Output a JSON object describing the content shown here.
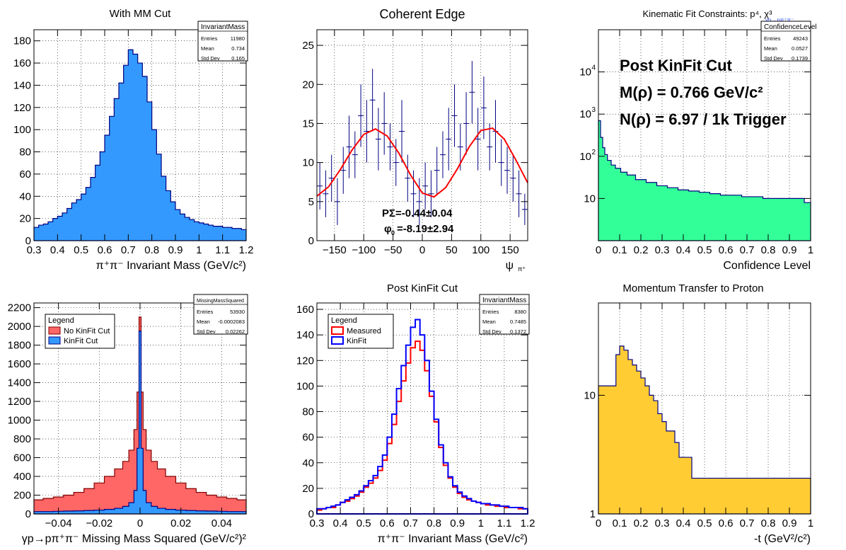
{
  "chart_data": [
    {
      "type": "histogram",
      "title": "With MM Cut",
      "xlabel": "π⁺π⁻ Invariant Mass (GeV/c²)",
      "xlim": [
        0.3,
        1.2
      ],
      "ylim": [
        0,
        190
      ],
      "xticks": [
        "0.3",
        "0.4",
        "0.5",
        "0.6",
        "0.7",
        "0.8",
        "0.9",
        "1",
        "1.1",
        "1.2"
      ],
      "yticks": [
        "0",
        "20",
        "40",
        "60",
        "80",
        "100",
        "120",
        "140",
        "160",
        "180"
      ],
      "ytick_values": [
        0,
        20,
        40,
        60,
        80,
        100,
        120,
        140,
        160,
        180
      ],
      "xtick_values": [
        0.3,
        0.4,
        0.5,
        0.6,
        0.7,
        0.8,
        0.9,
        1.0,
        1.1,
        1.2
      ],
      "series": [
        {
          "fill": "#3399ff",
          "line": "#000080",
          "x": [
            0.31,
            0.33,
            0.35,
            0.37,
            0.39,
            0.41,
            0.43,
            0.45,
            0.47,
            0.49,
            0.51,
            0.53,
            0.55,
            0.57,
            0.59,
            0.61,
            0.63,
            0.65,
            0.67,
            0.69,
            0.71,
            0.73,
            0.75,
            0.77,
            0.79,
            0.81,
            0.83,
            0.85,
            0.87,
            0.89,
            0.91,
            0.93,
            0.95,
            0.97,
            0.99,
            1.01,
            1.03,
            1.05,
            1.07,
            1.09,
            1.11,
            1.13,
            1.15,
            1.17,
            1.19
          ],
          "values": [
            12,
            14,
            15,
            17,
            20,
            22,
            25,
            29,
            34,
            37,
            42,
            48,
            57,
            68,
            80,
            95,
            112,
            128,
            142,
            158,
            172,
            168,
            160,
            148,
            125,
            100,
            78,
            58,
            45,
            35,
            28,
            24,
            21,
            19,
            17,
            16,
            15,
            14,
            13,
            13,
            12,
            12,
            11,
            11,
            10
          ]
        }
      ],
      "stats": {
        "name": "InvariantMass",
        "rows": [
          [
            "Entries",
            "11980"
          ],
          [
            "Mean",
            "0.734"
          ],
          [
            "Std Dev",
            "0.165"
          ]
        ]
      }
    },
    {
      "type": "scatter",
      "title": "Coherent Edge",
      "xlabel": "ψ",
      "xlabel_sub": "π⁺",
      "xlim": [
        -180,
        180
      ],
      "ylim": [
        0,
        27
      ],
      "xticks": [
        "−150",
        "−100",
        "−50",
        "0",
        "50",
        "100",
        "150"
      ],
      "xtick_values": [
        -150,
        -100,
        -50,
        0,
        50,
        100,
        150
      ],
      "yticks": [
        "0",
        "5",
        "10",
        "15",
        "20",
        "25"
      ],
      "ytick_values": [
        0,
        5,
        10,
        15,
        20,
        25
      ],
      "points": {
        "color": "#000080",
        "x": [
          -175,
          -165,
          -155,
          -145,
          -135,
          -125,
          -115,
          -105,
          -95,
          -85,
          -75,
          -65,
          -55,
          -45,
          -35,
          -25,
          -15,
          -5,
          5,
          15,
          25,
          35,
          45,
          55,
          65,
          75,
          85,
          95,
          105,
          115,
          125,
          135,
          145,
          155,
          165,
          175
        ],
        "y": [
          7,
          6,
          8,
          5,
          9,
          12,
          11,
          16,
          14,
          18,
          13,
          15,
          12,
          10,
          14,
          8,
          6,
          5,
          7,
          6,
          9,
          11,
          13,
          16,
          12,
          15,
          19,
          13,
          17,
          12,
          14,
          10,
          9,
          8,
          6,
          4
        ],
        "err": [
          3,
          3,
          3,
          3,
          3,
          4,
          3,
          4,
          4,
          4,
          4,
          4,
          3,
          3,
          4,
          3,
          3,
          3,
          3,
          3,
          3,
          3,
          4,
          4,
          3,
          4,
          4,
          4,
          4,
          3,
          4,
          3,
          3,
          3,
          3,
          2
        ]
      },
      "fit": {
        "color": "#ff0000",
        "x": [
          -180,
          -160,
          -140,
          -120,
          -100,
          -80,
          -60,
          -40,
          -20,
          0,
          20,
          40,
          60,
          80,
          100,
          120,
          140,
          160,
          180
        ],
        "y": [
          5.7,
          6.9,
          9.1,
          11.6,
          13.6,
          14.3,
          13.4,
          11.2,
          8.4,
          6.1,
          5.6,
          6.8,
          9.2,
          12.0,
          14.1,
          14.4,
          13.0,
          10.3,
          7.4
        ]
      },
      "annotations": [
        "PΣ=-0.44±0.04",
        "φ",
        "0",
        "=-8.19±2.94"
      ]
    },
    {
      "type": "histogram",
      "title": "Kinematic Fit Constraints: p⁴, χ³",
      "title_sub": "γp→pπ⁺π⁻",
      "xlabel": "Confidence Level",
      "xlim": [
        0,
        1
      ],
      "log_y": true,
      "ylim": [
        1,
        100000
      ],
      "xticks": [
        "0",
        "0.1",
        "0.2",
        "0.3",
        "0.4",
        "0.5",
        "0.6",
        "0.7",
        "0.8",
        "0.9",
        "1"
      ],
      "xtick_values": [
        0,
        0.1,
        0.2,
        0.3,
        0.4,
        0.5,
        0.6,
        0.7,
        0.8,
        0.9,
        1.0
      ],
      "yticks": [
        "10",
        "10",
        "10",
        "10"
      ],
      "ytick_exp": [
        "",
        "2",
        "3",
        "4"
      ],
      "ytick_values": [
        10,
        100,
        1000,
        10000
      ],
      "series": [
        {
          "fill": "#33ff99",
          "line": "#000080",
          "x": [
            0.005,
            0.015,
            0.025,
            0.035,
            0.05,
            0.07,
            0.09,
            0.12,
            0.15,
            0.2,
            0.25,
            0.3,
            0.35,
            0.4,
            0.45,
            0.5,
            0.55,
            0.6,
            0.65,
            0.7,
            0.75,
            0.8,
            0.85,
            0.9,
            0.95,
            0.99
          ],
          "values": [
            700,
            280,
            160,
            110,
            80,
            62,
            52,
            42,
            36,
            28,
            24,
            20,
            18,
            16,
            15,
            14,
            13,
            12,
            12,
            11,
            11,
            10,
            10,
            10,
            10,
            8
          ]
        }
      ],
      "stats": {
        "name": "ConfidenceLevel",
        "rows": [
          [
            "Entries",
            "49243"
          ],
          [
            "Mean",
            "0.0527"
          ],
          [
            "Std Dev",
            "0.1739"
          ]
        ]
      },
      "annotations": [
        "Post KinFit Cut",
        "M(ρ) = 0.766 GeV/c²",
        "N(ρ) = 6.97 / 1k Trigger"
      ]
    },
    {
      "type": "histogram",
      "title": "",
      "xlabel": "γp→pπ⁺π⁻ Missing Mass Squared (GeV/c²)²",
      "xlim": [
        -0.052,
        0.052
      ],
      "ylim": [
        0,
        2250
      ],
      "xticks": [
        "−0.04",
        "−0.02",
        "0",
        "0.02",
        "0.04"
      ],
      "xtick_values": [
        -0.04,
        -0.02,
        0,
        0.02,
        0.04
      ],
      "yticks": [
        "0",
        "200",
        "400",
        "600",
        "800",
        "1000",
        "1200",
        "1400",
        "1600",
        "1800",
        "2000",
        "2200"
      ],
      "ytick_values": [
        0,
        200,
        400,
        600,
        800,
        1000,
        1200,
        1400,
        1600,
        1800,
        2000,
        2200
      ],
      "legend": {
        "title": "Legend",
        "entries": [
          "No KinFit Cut",
          "KinFit Cut"
        ]
      },
      "series": [
        {
          "name": "No KinFit Cut",
          "fill": "#ff6666",
          "line": "#800000",
          "x": [
            -0.05,
            -0.045,
            -0.04,
            -0.035,
            -0.03,
            -0.025,
            -0.02,
            -0.015,
            -0.01,
            -0.007,
            -0.004,
            -0.002,
            -0.001,
            0,
            0.001,
            0.002,
            0.004,
            0.007,
            0.01,
            0.015,
            0.02,
            0.025,
            0.03,
            0.035,
            0.04,
            0.045,
            0.05
          ],
          "values": [
            150,
            165,
            180,
            200,
            230,
            270,
            330,
            400,
            480,
            560,
            680,
            900,
            1300,
            2100,
            1300,
            900,
            680,
            560,
            480,
            400,
            330,
            270,
            230,
            200,
            180,
            165,
            150
          ]
        },
        {
          "name": "KinFit Cut",
          "fill": "#3399ff",
          "line": "#000080",
          "x": [
            -0.05,
            -0.045,
            -0.04,
            -0.035,
            -0.03,
            -0.025,
            -0.02,
            -0.015,
            -0.01,
            -0.007,
            -0.004,
            -0.002,
            -0.001,
            0,
            0.001,
            0.002,
            0.004,
            0.007,
            0.01,
            0.015,
            0.02,
            0.025,
            0.03,
            0.035,
            0.04,
            0.045,
            0.05
          ],
          "values": [
            25,
            25,
            28,
            30,
            32,
            36,
            40,
            48,
            60,
            80,
            120,
            250,
            700,
            1950,
            700,
            250,
            120,
            80,
            60,
            48,
            40,
            36,
            32,
            30,
            28,
            25,
            25
          ]
        }
      ],
      "stats": {
        "name": "MissingMassSquared",
        "rows": [
          [
            "Entries",
            "53930"
          ],
          [
            "Mean",
            "-0.0002083"
          ],
          [
            "Std Dev",
            "0.02262"
          ]
        ]
      }
    },
    {
      "type": "histogram",
      "title": "Post KinFit Cut",
      "xlabel": "π⁺π⁻ Invariant Mass (GeV/c²)",
      "xlim": [
        0.3,
        1.2
      ],
      "ylim": [
        0,
        165
      ],
      "xticks": [
        "0.3",
        "0.4",
        "0.5",
        "0.6",
        "0.7",
        "0.8",
        "0.9",
        "1",
        "1.1",
        "1.2"
      ],
      "xtick_values": [
        0.3,
        0.4,
        0.5,
        0.6,
        0.7,
        0.8,
        0.9,
        1.0,
        1.1,
        1.2
      ],
      "yticks": [
        "0",
        "20",
        "40",
        "60",
        "80",
        "100",
        "120",
        "140",
        "160"
      ],
      "ytick_values": [
        0,
        20,
        40,
        60,
        80,
        100,
        120,
        140,
        160
      ],
      "legend": {
        "title": "Legend",
        "entries": [
          "Measured",
          "KinFit"
        ]
      },
      "series": [
        {
          "name": "Measured",
          "line": "#ff0000",
          "x": [
            0.31,
            0.33,
            0.35,
            0.37,
            0.39,
            0.41,
            0.43,
            0.45,
            0.47,
            0.49,
            0.51,
            0.53,
            0.55,
            0.57,
            0.59,
            0.61,
            0.63,
            0.65,
            0.67,
            0.69,
            0.71,
            0.73,
            0.75,
            0.77,
            0.79,
            0.81,
            0.83,
            0.85,
            0.87,
            0.89,
            0.91,
            0.93,
            0.95,
            0.97,
            0.99,
            1.01,
            1.03,
            1.05,
            1.07,
            1.09,
            1.11,
            1.13,
            1.15,
            1.17,
            1.19
          ],
          "values": [
            3,
            4,
            5,
            5,
            7,
            9,
            10,
            12,
            14,
            17,
            21,
            24,
            28,
            34,
            42,
            55,
            70,
            88,
            104,
            118,
            130,
            135,
            128,
            112,
            92,
            72,
            52,
            38,
            28,
            21,
            16,
            13,
            11,
            10,
            9,
            8,
            7,
            7,
            6,
            6,
            5,
            5,
            5,
            4,
            4
          ]
        },
        {
          "name": "KinFit",
          "line": "#0000ff",
          "x": [
            0.31,
            0.33,
            0.35,
            0.37,
            0.39,
            0.41,
            0.43,
            0.45,
            0.47,
            0.49,
            0.51,
            0.53,
            0.55,
            0.57,
            0.59,
            0.61,
            0.63,
            0.65,
            0.67,
            0.69,
            0.71,
            0.73,
            0.75,
            0.77,
            0.79,
            0.81,
            0.83,
            0.85,
            0.87,
            0.89,
            0.91,
            0.93,
            0.95,
            0.97,
            0.99,
            1.01,
            1.03,
            1.05,
            1.07,
            1.09,
            1.11,
            1.13,
            1.15,
            1.17,
            1.19
          ],
          "values": [
            4,
            4,
            5,
            6,
            7,
            9,
            11,
            13,
            15,
            18,
            22,
            26,
            30,
            37,
            46,
            60,
            78,
            98,
            116,
            132,
            146,
            152,
            140,
            120,
            96,
            74,
            54,
            40,
            29,
            22,
            17,
            14,
            12,
            10,
            9,
            8,
            8,
            7,
            7,
            6,
            6,
            5,
            5,
            5,
            4
          ]
        }
      ],
      "stats": {
        "name": "InvariantMass",
        "rows": [
          [
            "Entries",
            "8380"
          ],
          [
            "Mean",
            "0.7485"
          ],
          [
            "Std Dev",
            "0.1372"
          ]
        ]
      }
    },
    {
      "type": "histogram",
      "title": "Momentum Transfer to Proton",
      "xlabel": "-t (GeV²/c²)",
      "xlim": [
        0,
        1
      ],
      "log_y": true,
      "ylim": [
        1,
        60
      ],
      "xticks": [
        "0",
        "0.1",
        "0.2",
        "0.3",
        "0.4",
        "0.5",
        "0.6",
        "0.7",
        "0.8",
        "0.9",
        "1"
      ],
      "xtick_values": [
        0,
        0.1,
        0.2,
        0.3,
        0.4,
        0.5,
        0.6,
        0.7,
        0.8,
        0.9,
        1.0
      ],
      "yticks": [
        "1",
        "10"
      ],
      "ytick_values": [
        1,
        10
      ],
      "series": [
        {
          "fill": "#ffcc33",
          "line": "#000080",
          "x": [
            0.075,
            0.09,
            0.11,
            0.13,
            0.15,
            0.17,
            0.19,
            0.21,
            0.23,
            0.25,
            0.27,
            0.29,
            0.31,
            0.33,
            0.35,
            0.37,
            0.39,
            0.41,
            0.43,
            0.45,
            0.5,
            0.55,
            0.6,
            0.65,
            0.7,
            0.75,
            0.8,
            0.85,
            0.99
          ],
          "values": [
            12,
            22,
            26,
            24,
            20,
            18,
            16,
            14,
            12,
            10,
            9,
            7,
            6,
            5,
            5,
            4,
            3,
            3,
            3,
            2,
            2,
            2,
            2,
            2,
            2,
            2,
            2,
            2,
            2
          ]
        }
      ]
    }
  ]
}
